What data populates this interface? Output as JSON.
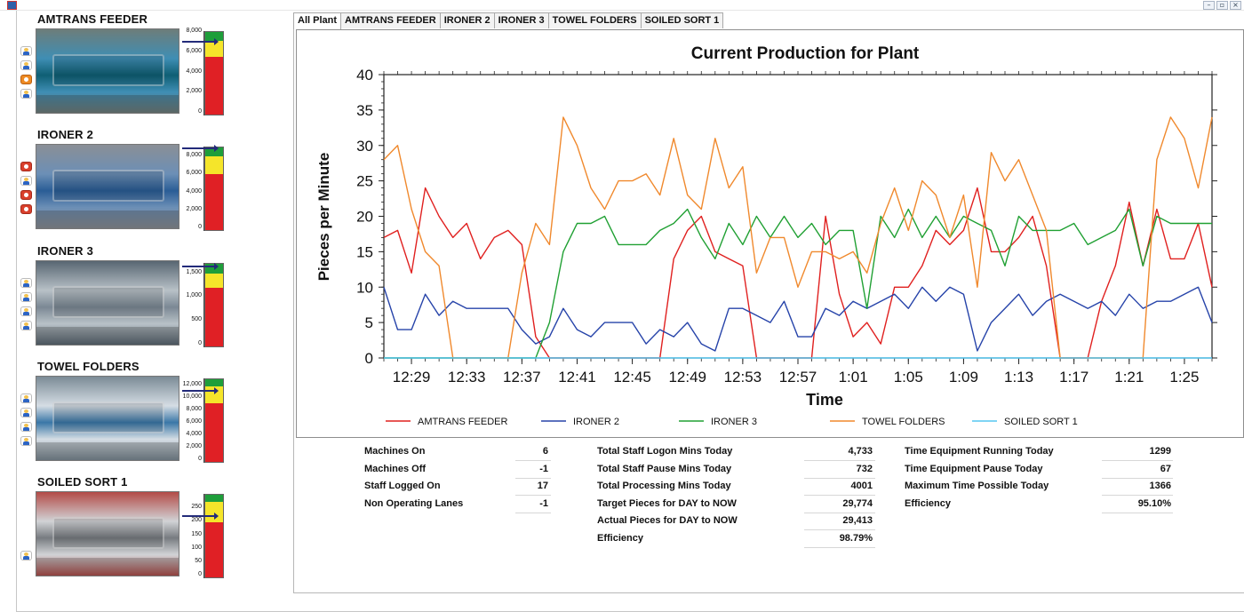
{
  "window": {
    "controls": [
      "–",
      "▫",
      "×"
    ]
  },
  "machines": [
    {
      "name": "AMTRANS FEEDER",
      "photo_colors": [
        "#0f5f74",
        "#3f8eb4",
        "#6d7d7a"
      ],
      "icons": [
        "person",
        "person",
        "orange",
        "person"
      ],
      "ticks": [
        "8,000",
        "6,000",
        "4,000",
        "2,000",
        "0"
      ],
      "gauge_max": 8000,
      "yellow_start": 5600,
      "green_start": 7100,
      "actual": 7000
    },
    {
      "name": "IRONER 2",
      "photo_colors": [
        "#2a5d96",
        "#6c8fb6",
        "#8a8f96"
      ],
      "icons": [
        "alert",
        "person",
        "alert",
        "alert"
      ],
      "ticks": [
        "8,000",
        "6,000",
        "4,000",
        "2,000",
        "0"
      ],
      "gauge_max": 9000,
      "yellow_start": 6100,
      "green_start": 8000,
      "actual": 8900
    },
    {
      "name": "IRONER 3",
      "photo_colors": [
        "#7b8894",
        "#b8c1c7",
        "#586672"
      ],
      "icons": [
        "person",
        "person",
        "person",
        "person"
      ],
      "ticks": [
        "1,500",
        "1,000",
        "500",
        "0"
      ],
      "gauge_max": 1700,
      "yellow_start": 1200,
      "green_start": 1500,
      "actual": 1650
    },
    {
      "name": "TOWEL FOLDERS",
      "photo_colors": [
        "#3a77a7",
        "#d5dde4",
        "#7b8b96"
      ],
      "icons": [
        "person",
        "person",
        "person",
        "person"
      ],
      "ticks": [
        "12,000",
        "10,000",
        "8,000",
        "6,000",
        "4,000",
        "2,000",
        "0"
      ],
      "gauge_max": 13000,
      "yellow_start": 9200,
      "green_start": 11900,
      "actual": 11200
    },
    {
      "name": "SOILED SORT 1",
      "photo_colors": [
        "#777b80",
        "#d1d3d6",
        "#b34b47"
      ],
      "icons": [
        "person"
      ],
      "ticks": [
        "250",
        "200",
        "150",
        "100",
        "50",
        "0"
      ],
      "gauge_max": 300,
      "yellow_start": 200,
      "green_start": 275,
      "actual": 220
    }
  ],
  "tabs": [
    "All Plant",
    "AMTRANS FEEDER",
    "IRONER 2",
    "IRONER 3",
    "TOWEL FOLDERS",
    "SOILED SORT 1"
  ],
  "chart_data": {
    "type": "line",
    "title": "Current Production for Plant",
    "xlabel": "Time",
    "ylabel": "Pieces per Minute",
    "ylim": [
      0,
      40
    ],
    "y_ticks": [
      "0",
      "5",
      "10",
      "15",
      "20",
      "25",
      "30",
      "35",
      "40"
    ],
    "x_tick_labels": [
      "12:29",
      "12:33",
      "12:37",
      "12:41",
      "12:45",
      "12:49",
      "12:53",
      "12:57",
      "1:01",
      "1:05",
      "1:09",
      "1:13",
      "1:17",
      "1:21",
      "1:25"
    ],
    "legend_position": "bottom",
    "series": [
      {
        "name": "AMTRANS FEEDER",
        "color": "#e0201f",
        "values": [
          17,
          18,
          12,
          24,
          20,
          17,
          19,
          14,
          17,
          18,
          16,
          3,
          0,
          0,
          0,
          0,
          0,
          0,
          0,
          0,
          0,
          14,
          18,
          20,
          15,
          14,
          13,
          0,
          0,
          0,
          0,
          0,
          20,
          9,
          3,
          5,
          2,
          10,
          10,
          13,
          18,
          16,
          18,
          24,
          15,
          15,
          17,
          20,
          13,
          0,
          0,
          0,
          8,
          13,
          22,
          13,
          21,
          14,
          14,
          19,
          10
        ]
      },
      {
        "name": "IRONER 2",
        "color": "#2643a9",
        "values": [
          10,
          4,
          4,
          9,
          6,
          8,
          7,
          7,
          7,
          7,
          4,
          2,
          3,
          7,
          4,
          3,
          5,
          5,
          5,
          2,
          4,
          3,
          5,
          2,
          1,
          7,
          7,
          6,
          5,
          8,
          3,
          3,
          7,
          6,
          8,
          7,
          8,
          9,
          7,
          10,
          8,
          10,
          9,
          1,
          5,
          7,
          9,
          6,
          8,
          9,
          8,
          7,
          8,
          6,
          9,
          7,
          8,
          8,
          9,
          10,
          5
        ]
      },
      {
        "name": "IRONER 3",
        "color": "#20a033",
        "values": [
          0,
          0,
          0,
          0,
          0,
          0,
          0,
          0,
          0,
          0,
          0,
          0,
          5,
          15,
          19,
          19,
          20,
          16,
          16,
          16,
          18,
          19,
          21,
          17,
          14,
          19,
          16,
          20,
          17,
          20,
          17,
          19,
          16,
          18,
          18,
          7,
          20,
          17,
          21,
          17,
          20,
          17,
          20,
          19,
          18,
          13,
          20,
          18,
          18,
          18,
          19,
          16,
          17,
          18,
          21,
          13,
          20,
          19,
          19,
          19,
          19
        ]
      },
      {
        "name": "TOWEL FOLDERS",
        "color": "#f0892d",
        "values": [
          28,
          30,
          21,
          15,
          13,
          0,
          0,
          0,
          0,
          0,
          12,
          19,
          16,
          34,
          30,
          24,
          21,
          25,
          25,
          26,
          23,
          31,
          23,
          21,
          31,
          24,
          27,
          12,
          17,
          17,
          10,
          15,
          15,
          14,
          15,
          12,
          19,
          24,
          18,
          25,
          23,
          17,
          23,
          10,
          29,
          25,
          28,
          23,
          18,
          0,
          0,
          0,
          0,
          0,
          0,
          0,
          28,
          34,
          31,
          24,
          34
        ]
      },
      {
        "name": "SOILED SORT 1",
        "color": "#55c6f0",
        "values": [
          0,
          0,
          0,
          0,
          0,
          0,
          0,
          0,
          0,
          0,
          0,
          0,
          0,
          0,
          0,
          0,
          0,
          0,
          0,
          0,
          0,
          0,
          0,
          0,
          0,
          0,
          0,
          0,
          0,
          0,
          0,
          0,
          0,
          0,
          0,
          0,
          0,
          0,
          0,
          0,
          0,
          0,
          0,
          0,
          0,
          0,
          0,
          0,
          0,
          0,
          0,
          0,
          0,
          0,
          0,
          0,
          0,
          0,
          0,
          0,
          0
        ]
      }
    ]
  },
  "stats": {
    "col1": [
      {
        "label": "Machines On",
        "value": "6"
      },
      {
        "label": "Machines Off",
        "value": "-1"
      },
      {
        "label": "Staff Logged On",
        "value": "17"
      },
      {
        "label": "Non Operating Lanes",
        "value": "-1"
      }
    ],
    "col2": [
      {
        "label": "Total Staff Logon Mins Today",
        "value": "4,733"
      },
      {
        "label": "Total Staff Pause Mins Today",
        "value": "732"
      },
      {
        "label": "Total Processing Mins Today",
        "value": "4001"
      },
      {
        "label": "Target Pieces for DAY to NOW",
        "value": "29,774"
      },
      {
        "label": "Actual Pieces for DAY to NOW",
        "value": "29,413"
      },
      {
        "label": "Efficiency",
        "value": "98.79%"
      }
    ],
    "col3": [
      {
        "label": "Time Equipment Running Today",
        "value": "1299"
      },
      {
        "label": "Time Equipment Pause Today",
        "value": "67"
      },
      {
        "label": "Maximum Time Possible Today",
        "value": "1366"
      },
      {
        "label": "Efficiency",
        "value": "95.10%"
      }
    ]
  }
}
